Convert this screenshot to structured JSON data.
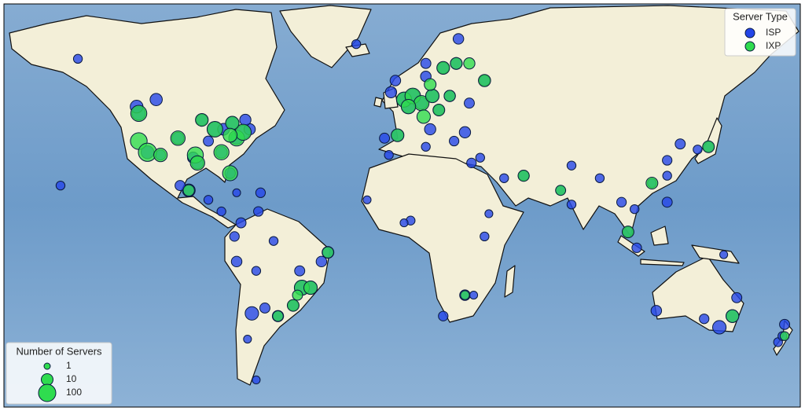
{
  "chart_data": {
    "type": "bubble-map",
    "legend_title": "Server Type",
    "size_legend": {
      "title": "Number of Servers",
      "sizes": [
        1,
        10,
        100
      ]
    },
    "series": [
      {
        "name": "ISP",
        "color": "#2446e8",
        "x": [
          -122,
          -118,
          -104,
          -97,
          -87,
          -95,
          -84,
          -80,
          -77,
          -74,
          -71,
          -90,
          -112,
          -93,
          -83,
          -79,
          -73,
          -114,
          -123,
          -150,
          -99,
          -103,
          -90,
          -84,
          -66,
          -77,
          -75,
          -78,
          -77,
          -70,
          -58,
          -47,
          -43,
          -38,
          -35,
          -48,
          -60,
          -51,
          -67,
          -68,
          -64,
          -72,
          -68,
          0,
          -6,
          2,
          4,
          13,
          8,
          10,
          18,
          24,
          25,
          10,
          -3,
          -9,
          12,
          21,
          16,
          23,
          28,
          37,
          30,
          -22,
          -4,
          35,
          46,
          55,
          72,
          77,
          77,
          90,
          100,
          106,
          103,
          107,
          121,
          121,
          127,
          140,
          135,
          121,
          114,
          3,
          -17,
          -7,
          10,
          31,
          37,
          39,
          28,
          18,
          32,
          0,
          151,
          145,
          153,
          116,
          138,
          175,
          172,
          174,
          -158,
          147
        ],
        "y": [
          47,
          34,
          39,
          32,
          42,
          30,
          34,
          26,
          39,
          41,
          42,
          38,
          33,
          45,
          42,
          44,
          45,
          51,
          49,
          61,
          19,
          21,
          15,
          10,
          18,
          18,
          5,
          -1,
          -12,
          -33,
          -34,
          -23,
          -23,
          -12,
          -8,
          -16,
          -3,
          -30,
          10,
          -16,
          -31,
          -42,
          -54,
          51,
          53,
          49,
          52,
          52,
          50,
          57,
          59,
          60,
          65,
          60,
          40,
          39,
          42,
          52,
          48,
          38,
          41,
          56,
          50,
          64,
          56,
          32,
          24,
          25,
          19,
          13,
          29,
          24,
          14,
          11,
          1,
          -6,
          14,
          31,
          37,
          36,
          35,
          25,
          22,
          6,
          15,
          33,
          36,
          30,
          -1,
          9,
          -26,
          -34,
          -26,
          5,
          -34,
          -38,
          -27,
          -32,
          -35,
          -37,
          -43,
          -41,
          21,
          -9
        ],
        "size": [
          20,
          15,
          10,
          8,
          30,
          10,
          10,
          6,
          12,
          25,
          8,
          5,
          5,
          8,
          10,
          15,
          8,
          12,
          15,
          3,
          15,
          5,
          3,
          3,
          4,
          2,
          5,
          4,
          6,
          20,
          8,
          30,
          15,
          6,
          10,
          5,
          3,
          6,
          4,
          3,
          5,
          2,
          2,
          30,
          8,
          20,
          25,
          15,
          12,
          6,
          8,
          10,
          6,
          5,
          10,
          5,
          8,
          8,
          6,
          4,
          8,
          6,
          5,
          3,
          6,
          3,
          3,
          5,
          4,
          3,
          3,
          3,
          4,
          3,
          5,
          4,
          5,
          4,
          5,
          6,
          3,
          3,
          3,
          3,
          2,
          3,
          3,
          4,
          3,
          2,
          6,
          4,
          2,
          2,
          15,
          20,
          5,
          6,
          4,
          5,
          3,
          3,
          3,
          2
        ]
      },
      {
        "name": "IXP",
        "color": "#2fdc4f",
        "x": [
          -122,
          -118,
          -122,
          -96,
          -87,
          -84,
          -77,
          -74,
          -95,
          -80,
          -112,
          -104,
          -79,
          -93,
          -80,
          -99,
          -47,
          -43,
          -58,
          -35,
          -51,
          -49,
          0,
          4,
          8,
          2,
          13,
          9,
          -3,
          24,
          18,
          12,
          30,
          37,
          16,
          55,
          72,
          103,
          114,
          140,
          151,
          28,
          175,
          21
        ],
        "y": [
          38,
          34,
          47,
          33,
          42,
          34,
          39,
          41,
          30,
          26,
          33,
          39,
          44,
          45,
          40,
          19,
          -23,
          -23,
          -34,
          -8,
          -30,
          -26,
          51,
          52,
          50,
          49,
          52,
          46,
          40,
          60,
          59,
          55,
          60,
          56,
          48,
          25,
          19,
          1,
          22,
          36,
          -34,
          -26,
          -41,
          52
        ],
        "size": [
          80,
          150,
          60,
          60,
          50,
          40,
          50,
          60,
          30,
          40,
          20,
          30,
          20,
          15,
          25,
          8,
          40,
          20,
          6,
          8,
          10,
          5,
          40,
          50,
          40,
          30,
          20,
          20,
          15,
          10,
          15,
          10,
          8,
          12,
          10,
          8,
          5,
          10,
          10,
          10,
          15,
          3,
          3,
          8
        ]
      }
    ]
  }
}
